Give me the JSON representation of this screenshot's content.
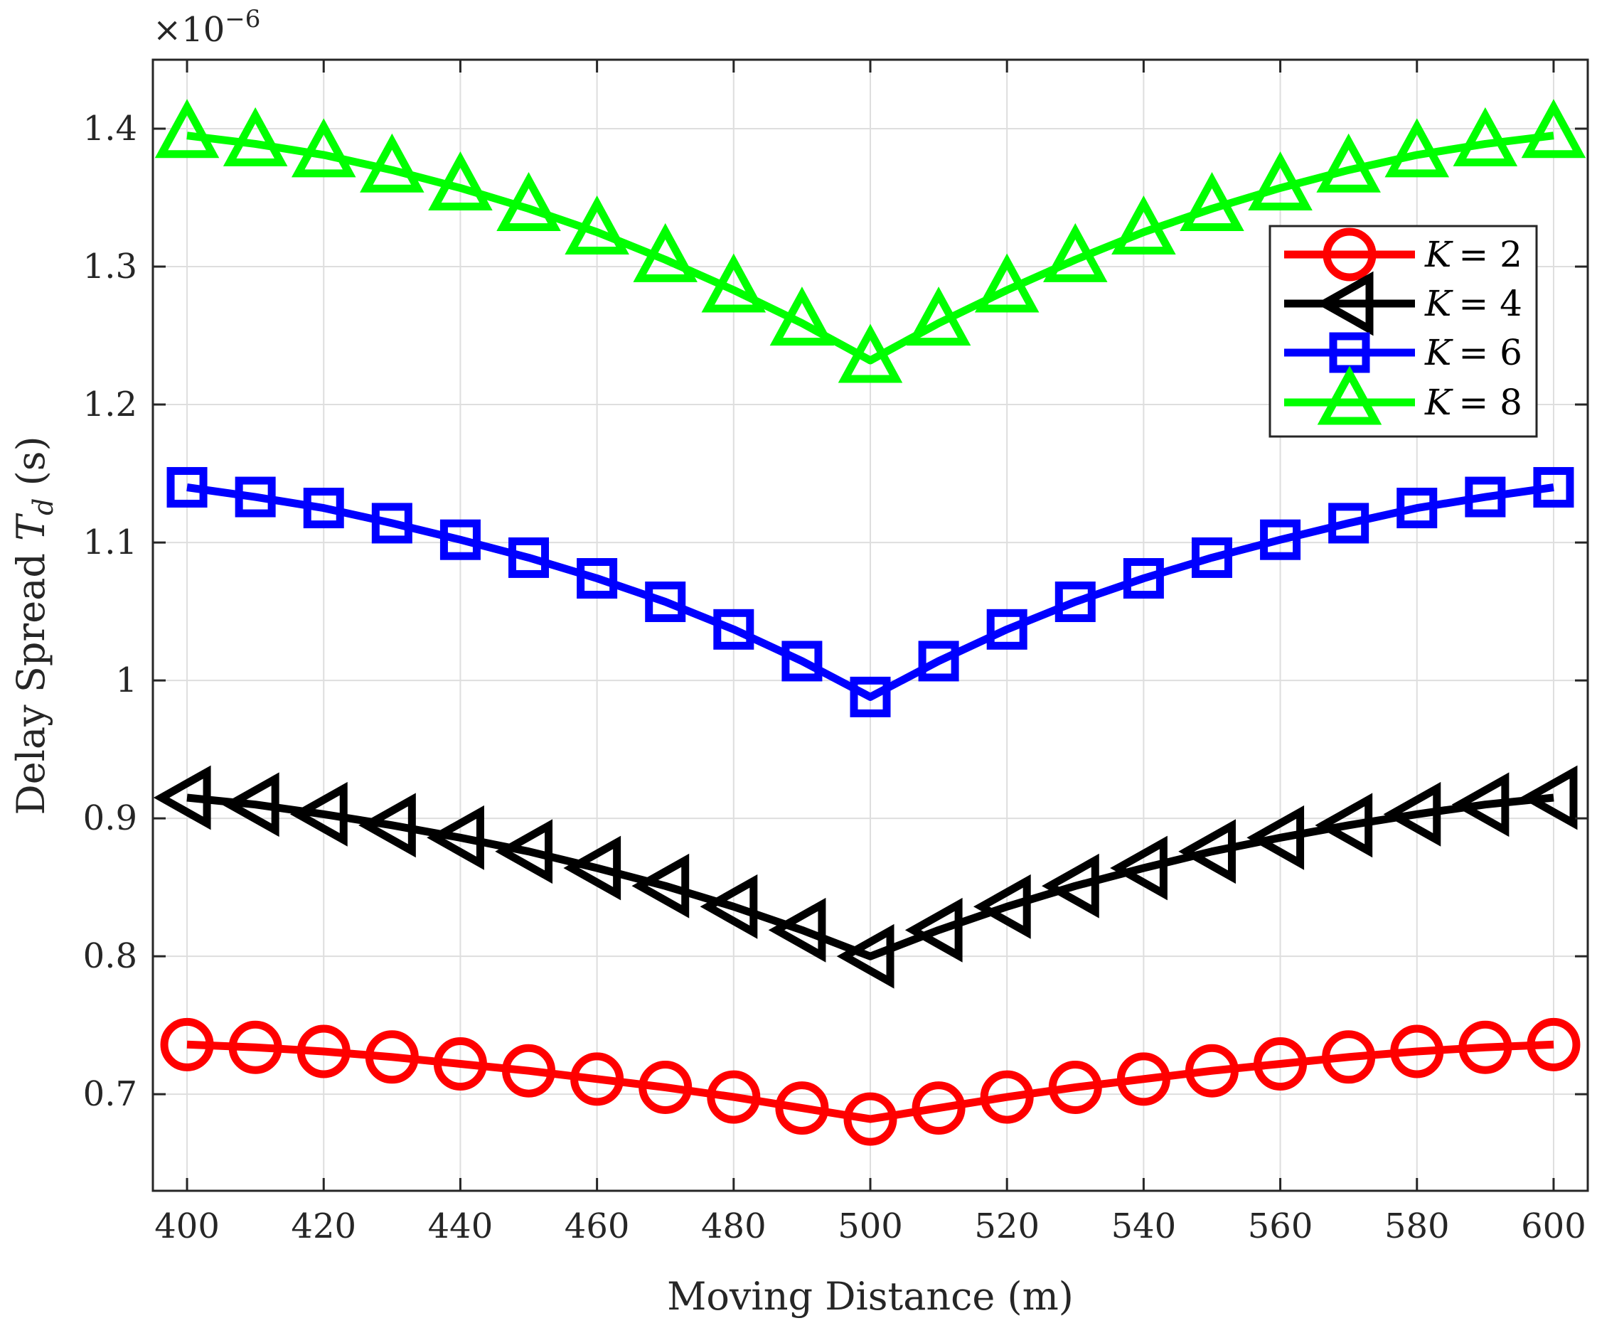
{
  "chart_data": {
    "type": "line",
    "xlabel": "Moving Distance (m)",
    "ylabel_prefix": "Delay Spread ",
    "ylabel_symbol": "T",
    "ylabel_subscript": "d",
    "ylabel_suffix": " (s)",
    "exponent_label": "×10",
    "exponent_power": "−6",
    "xlim": [
      395,
      605
    ],
    "ylim": [
      0.63,
      1.45
    ],
    "x_ticks": [
      400,
      420,
      440,
      460,
      480,
      500,
      520,
      540,
      560,
      580,
      600
    ],
    "y_ticks": [
      0.7,
      0.8,
      0.9,
      1.0,
      1.1,
      1.2,
      1.3,
      1.4
    ],
    "y_tick_labels": [
      "0.7",
      "0.8",
      "0.9",
      "1",
      "1.1",
      "1.2",
      "1.3",
      "1.4"
    ],
    "grid": true,
    "legend_position": "top-right",
    "x": [
      400,
      410,
      420,
      430,
      440,
      450,
      460,
      470,
      480,
      490,
      500,
      510,
      520,
      530,
      540,
      550,
      560,
      570,
      580,
      590,
      600
    ],
    "series": [
      {
        "name": "K = 2",
        "legend_symbol": "K",
        "legend_value": "= 2",
        "color": "#ff0000",
        "marker": "circle",
        "values": [
          0.736,
          0.734,
          0.731,
          0.727,
          0.722,
          0.717,
          0.711,
          0.705,
          0.698,
          0.69,
          0.682,
          0.69,
          0.698,
          0.705,
          0.711,
          0.717,
          0.722,
          0.727,
          0.731,
          0.734,
          0.736
        ]
      },
      {
        "name": "K = 4",
        "legend_symbol": "K",
        "legend_value": "= 4",
        "color": "#000000",
        "marker": "triangle-left",
        "values": [
          0.915,
          0.91,
          0.903,
          0.895,
          0.886,
          0.876,
          0.864,
          0.851,
          0.836,
          0.819,
          0.8,
          0.819,
          0.836,
          0.851,
          0.864,
          0.876,
          0.886,
          0.895,
          0.903,
          0.91,
          0.915
        ]
      },
      {
        "name": "K = 6",
        "legend_symbol": "K",
        "legend_value": "= 6",
        "color": "#0000ff",
        "marker": "square",
        "values": [
          1.14,
          1.133,
          1.125,
          1.114,
          1.102,
          1.089,
          1.074,
          1.057,
          1.037,
          1.014,
          0.988,
          1.014,
          1.037,
          1.057,
          1.074,
          1.089,
          1.102,
          1.114,
          1.125,
          1.133,
          1.14
        ]
      },
      {
        "name": "K = 8",
        "legend_symbol": "K",
        "legend_value": "= 8",
        "color": "#00ff00",
        "marker": "triangle-up",
        "values": [
          1.395,
          1.389,
          1.381,
          1.37,
          1.357,
          1.342,
          1.325,
          1.305,
          1.283,
          1.259,
          1.232,
          1.259,
          1.283,
          1.305,
          1.325,
          1.342,
          1.357,
          1.37,
          1.381,
          1.389,
          1.395
        ]
      }
    ]
  }
}
